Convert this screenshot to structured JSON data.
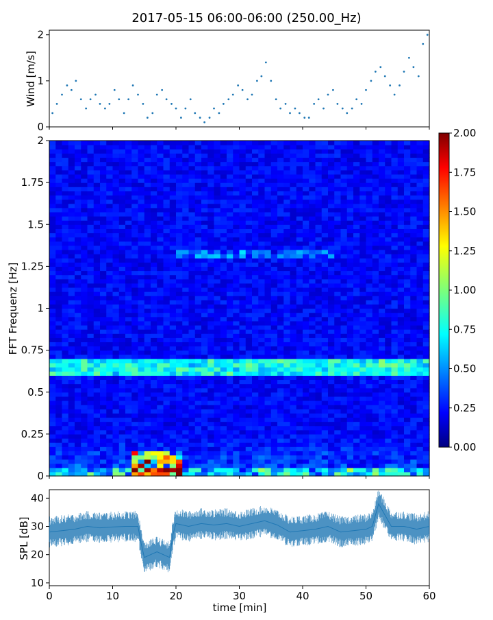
{
  "figure_title": "2017-05-15 06:00-06:00 (250.00_Hz)",
  "chart_data": [
    {
      "type": "scatter",
      "ylabel": "Wind [m/s]",
      "xlim": [
        0,
        60
      ],
      "ylim": [
        0,
        2.1
      ],
      "yticks": [
        0,
        1,
        2
      ],
      "grid": false,
      "color": "#1f77b4",
      "x": [
        0.5,
        1.2,
        2.0,
        2.8,
        3.5,
        4.2,
        5.0,
        5.8,
        6.5,
        7.3,
        8.0,
        8.8,
        9.5,
        10.3,
        11.0,
        11.8,
        12.5,
        13.2,
        14.0,
        14.8,
        15.5,
        16.3,
        17.0,
        17.8,
        18.5,
        19.3,
        20.0,
        20.8,
        21.5,
        22.3,
        23.0,
        23.8,
        24.5,
        25.3,
        26.0,
        26.8,
        27.5,
        28.3,
        29.0,
        29.8,
        30.5,
        31.3,
        32.0,
        32.8,
        33.5,
        34.2,
        35.0,
        35.8,
        36.5,
        37.3,
        38.0,
        38.8,
        39.5,
        40.3,
        41.0,
        41.8,
        42.5,
        43.3,
        44.0,
        44.8,
        45.5,
        46.3,
        47.0,
        47.8,
        48.5,
        49.3,
        50.0,
        50.8,
        51.5,
        52.3,
        53.0,
        53.8,
        54.5,
        55.3,
        56.0,
        56.8,
        57.5,
        58.3,
        59.0,
        59.7
      ],
      "y": [
        0.3,
        0.5,
        0.7,
        0.9,
        0.8,
        1.0,
        0.6,
        0.4,
        0.6,
        0.7,
        0.5,
        0.4,
        0.5,
        0.8,
        0.6,
        0.3,
        0.6,
        0.9,
        0.7,
        0.5,
        0.2,
        0.3,
        0.7,
        0.8,
        0.6,
        0.5,
        0.4,
        0.2,
        0.4,
        0.6,
        0.3,
        0.2,
        0.1,
        0.2,
        0.4,
        0.3,
        0.5,
        0.6,
        0.7,
        0.9,
        0.8,
        0.6,
        0.7,
        1.0,
        1.1,
        1.4,
        1.0,
        0.6,
        0.4,
        0.5,
        0.3,
        0.4,
        0.3,
        0.2,
        0.2,
        0.5,
        0.6,
        0.4,
        0.7,
        0.8,
        0.5,
        0.4,
        0.3,
        0.4,
        0.6,
        0.5,
        0.8,
        1.0,
        1.2,
        1.3,
        1.1,
        0.9,
        0.7,
        0.9,
        1.2,
        1.5,
        1.3,
        1.1,
        1.8,
        2.0
      ]
    },
    {
      "type": "heatmap",
      "ylabel": "FFT Frequenz [Hz]",
      "xlim": [
        0,
        60
      ],
      "ylim": [
        0,
        2
      ],
      "yticks": [
        0,
        0.25,
        0.5,
        0.75,
        1,
        1.25,
        1.5,
        1.75,
        2
      ],
      "ytick_labels": [
        "0",
        "0.25",
        "0.5",
        "0.75",
        "1",
        "1.25",
        "1.5",
        "1.75",
        "2"
      ],
      "colormap": "jet",
      "colorbar": {
        "range": [
          0,
          2
        ],
        "ticks": [
          "0.00",
          "0.25",
          "0.50",
          "0.75",
          "1.00",
          "1.25",
          "1.50",
          "1.75",
          "2.00"
        ]
      },
      "features": [
        {
          "description": "band near 0.62-0.68 Hz",
          "frequency_hz": 0.65,
          "level": 0.7
        },
        {
          "description": "band near 1.3 Hz",
          "frequency_hz": 1.32,
          "level": 0.4
        },
        {
          "description": "low-frequency energy",
          "frequency_hz": 0.05,
          "level": 1.9
        }
      ]
    },
    {
      "type": "line",
      "ylabel": "SPL [dB]",
      "xlabel": "time [min]",
      "xlim": [
        0,
        60
      ],
      "ylim": [
        9,
        43
      ],
      "xticks": [
        0,
        10,
        20,
        30,
        40,
        50,
        60
      ],
      "yticks": [
        10,
        20,
        30,
        40
      ],
      "color": "#1f77b4",
      "x": [
        0,
        2,
        4,
        6,
        8,
        10,
        12,
        14,
        14.5,
        15,
        16,
        17,
        18,
        19,
        19.5,
        20,
        22,
        24,
        26,
        28,
        30,
        32,
        34,
        36,
        38,
        40,
        42,
        44,
        46,
        48,
        50,
        51,
        52,
        54,
        56,
        58,
        60
      ],
      "y": [
        28,
        28.5,
        29,
        30,
        29.5,
        29.8,
        30,
        30,
        24,
        19,
        20,
        21,
        20,
        19,
        27,
        31,
        30,
        31,
        30.5,
        31,
        30,
        31,
        32,
        30.5,
        28,
        28.5,
        29,
        30,
        28,
        28.5,
        29,
        30,
        38,
        30,
        30,
        29,
        30
      ]
    }
  ],
  "colors": {
    "accent": "#1f77b4"
  }
}
